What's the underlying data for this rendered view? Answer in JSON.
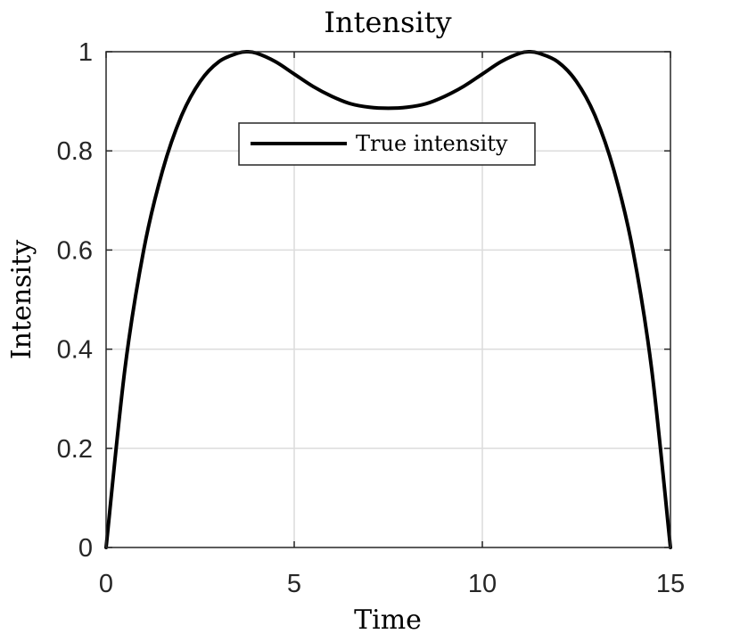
{
  "chart_data": {
    "type": "line",
    "title": "Intensity",
    "xlabel": "Time",
    "ylabel": "Intensity",
    "xlim": [
      0,
      15
    ],
    "ylim": [
      0,
      1
    ],
    "x_ticks": [
      0,
      5,
      10,
      15
    ],
    "y_ticks": [
      0,
      0.2,
      0.4,
      0.6,
      0.8,
      1
    ],
    "x_tick_labels": [
      "0",
      "5",
      "10",
      "15"
    ],
    "y_tick_labels": [
      "0",
      "0.2",
      "0.4",
      "0.6",
      "0.8",
      "1"
    ],
    "grid": true,
    "legend": {
      "position": "top-center",
      "entries": [
        "True intensity"
      ]
    },
    "series": [
      {
        "name": "True intensity",
        "color": "#000000",
        "x": [
          0,
          0.5,
          1,
          1.5,
          2,
          2.5,
          3,
          3.5,
          3.75,
          4,
          4.5,
          5,
          5.5,
          6,
          6.5,
          7,
          7.5,
          8,
          8.5,
          9,
          9.5,
          10,
          10.5,
          11,
          11.25,
          11.5,
          12,
          12.5,
          13,
          13.5,
          14,
          14.5,
          15
        ],
        "y": [
          0,
          0.36,
          0.6,
          0.76,
          0.87,
          0.94,
          0.98,
          0.997,
          1.0,
          0.997,
          0.98,
          0.955,
          0.93,
          0.91,
          0.895,
          0.888,
          0.886,
          0.888,
          0.895,
          0.91,
          0.93,
          0.955,
          0.98,
          0.997,
          1.0,
          0.997,
          0.98,
          0.94,
          0.87,
          0.76,
          0.6,
          0.36,
          0
        ]
      }
    ]
  }
}
